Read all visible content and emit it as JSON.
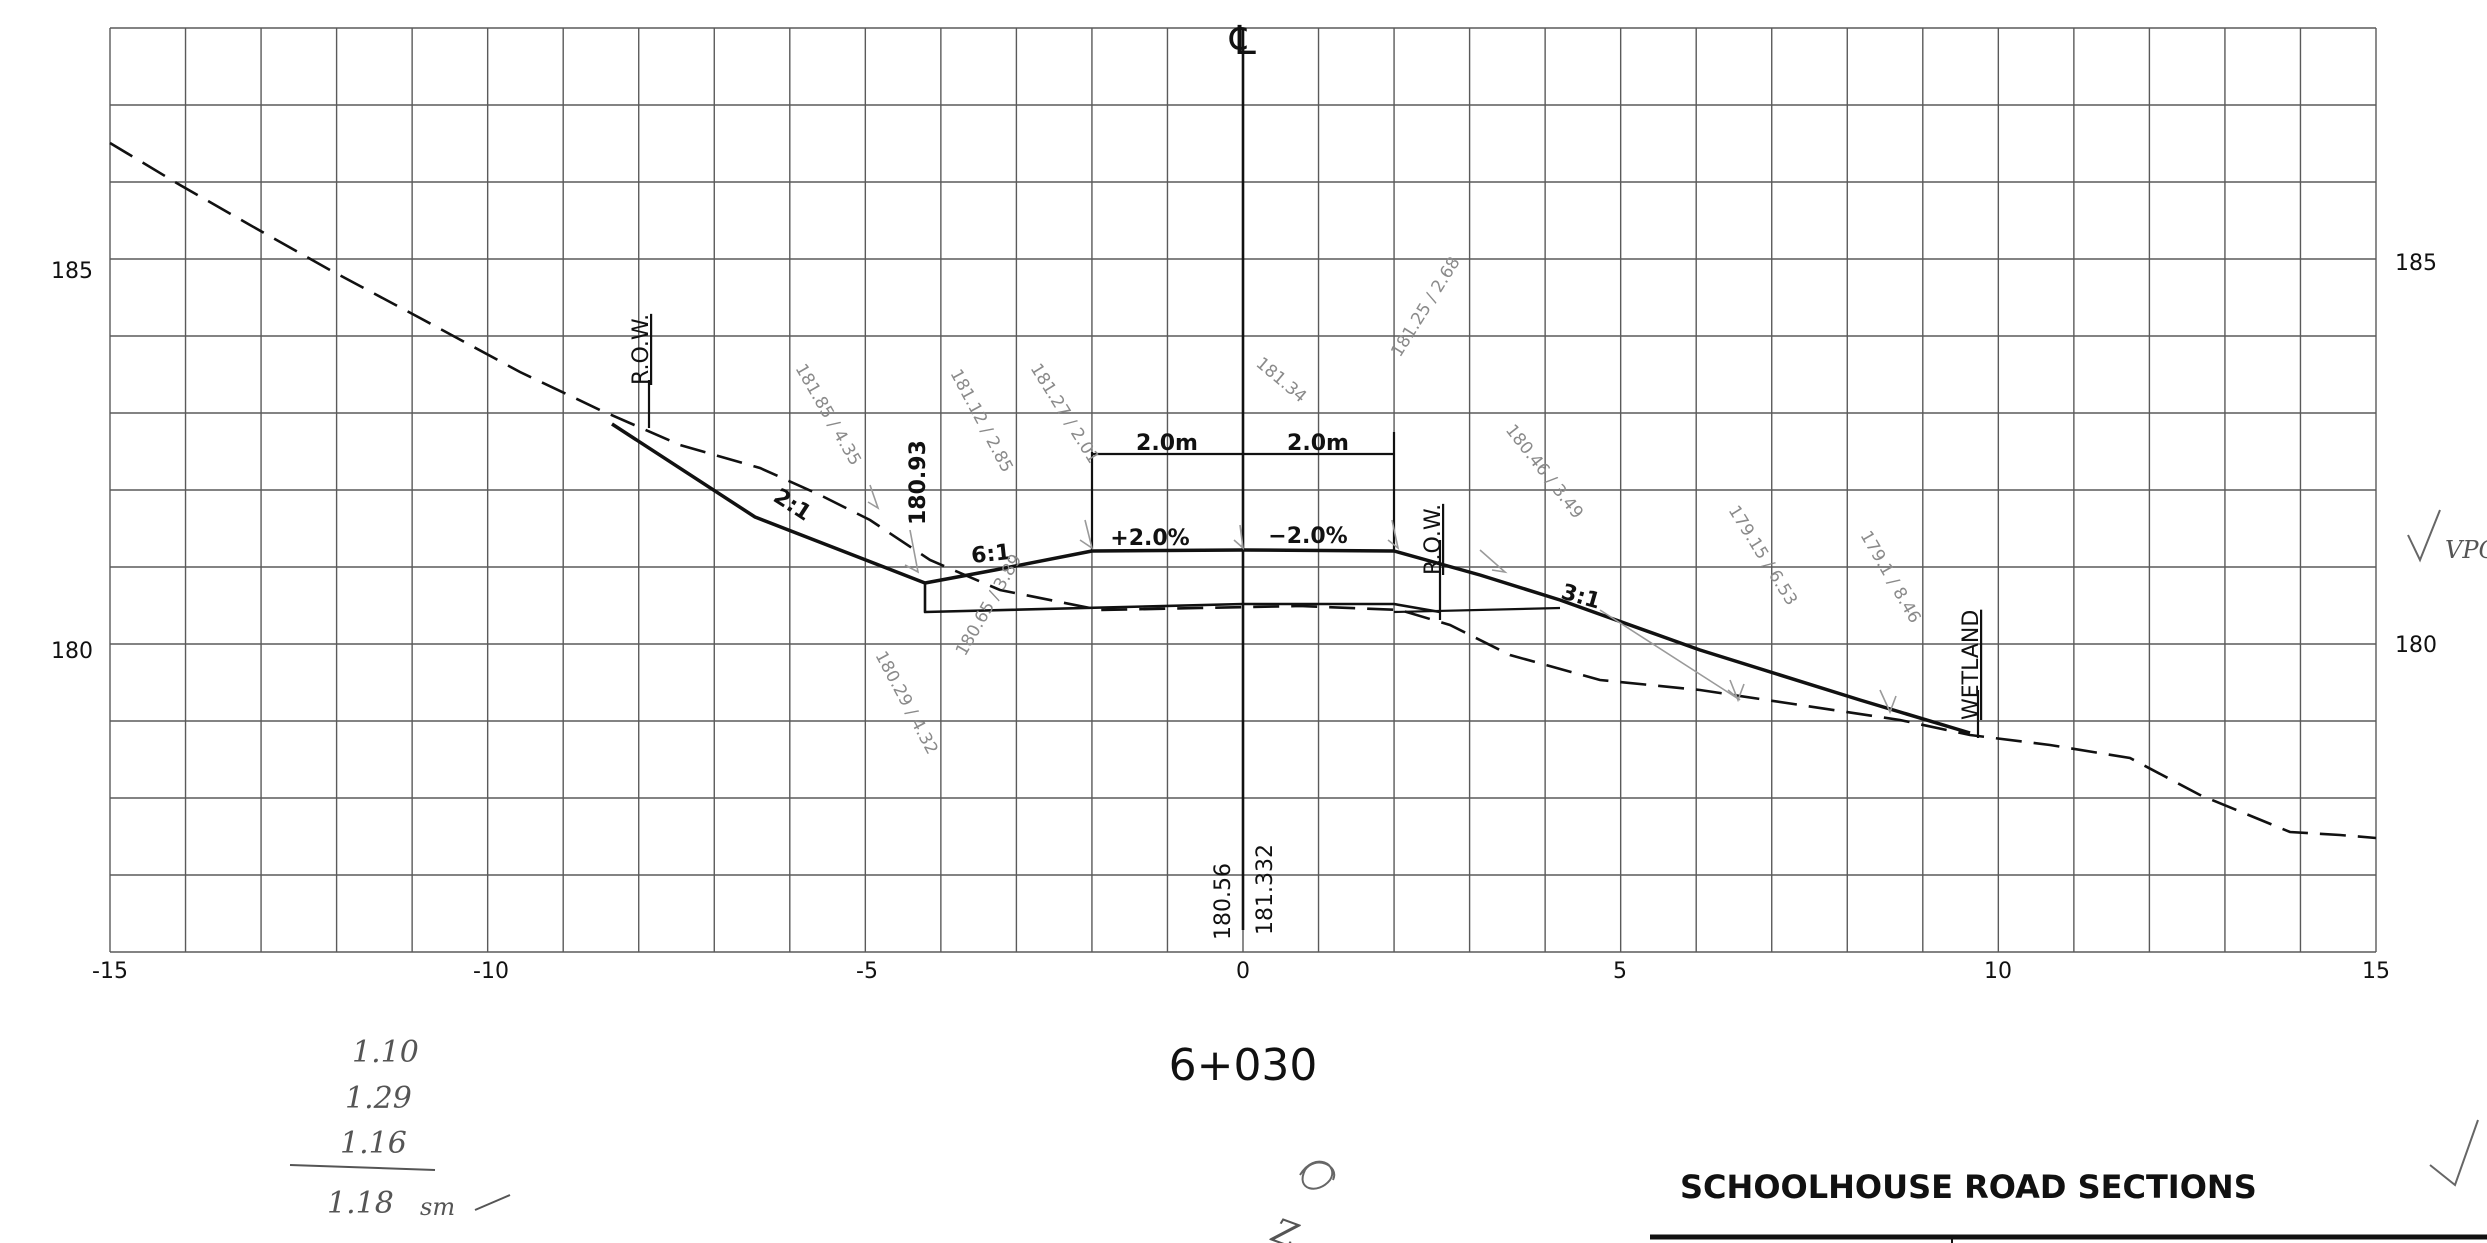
{
  "centerline_symbol": "℄",
  "axes": {
    "x_ticks": [
      "-15",
      "-10",
      "-5",
      "0",
      "5",
      "10",
      "15"
    ],
    "y_ticks_left": [
      "185",
      "180"
    ],
    "y_ticks_right": [
      "185",
      "180"
    ]
  },
  "labels": {
    "row_left": "R.O.W.",
    "row_right": "R.O.W.",
    "wetland": "WETLAND",
    "slope_2_1": "2:1",
    "slope_6_1": "6:1",
    "slope_3_1": "3:1",
    "width_left": "2.0m",
    "width_right": "2.0m",
    "grade_left": "+2.0%",
    "grade_right": "−2.0%",
    "elev_ditch": "180.93",
    "elev_existing_cl": "180.56",
    "elev_design_cl": "181.332"
  },
  "faint_annotations": [
    "181.85 / 4.35",
    "181.12 / 2.85",
    "181.27 / 2.01",
    "181.34",
    "181.25 / 2.68",
    "180.46 / 3.49",
    "179.15 / 6.53",
    "179.1 / 8.46",
    "180.29 / 4.32",
    "180.65 / 3.89"
  ],
  "station": "6+030",
  "handwritten": {
    "line1": "1.10",
    "line2": "1.29",
    "line3": "1.16",
    "total": "1.18",
    "initials": "sm",
    "margin_note": "VPC",
    "scribble": "Z"
  },
  "title_block": {
    "title": "SCHOOLHOUSE ROAD SECTIONS"
  },
  "colors": {
    "grid": "#5a5a5a",
    "design_line": "#111111",
    "existing_ground": "#111111",
    "annotation": "#8a8a8a"
  }
}
